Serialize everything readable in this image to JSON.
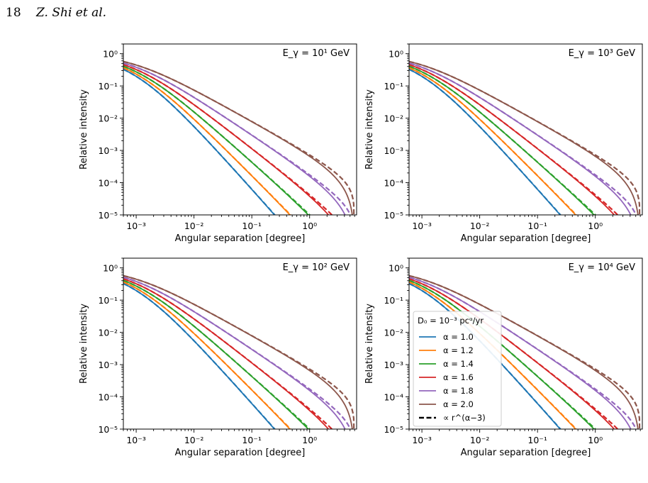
{
  "header": {
    "page_number": "18",
    "authors": "Z. Shi et al."
  },
  "colors": {
    "a10": "#1f77b4",
    "a12": "#ff7f0e",
    "a14": "#2ca02c",
    "a16": "#d62728",
    "a18": "#9467bd",
    "a20": "#8c564b"
  },
  "legend": {
    "title": "D₀ = 10⁻³ pcᵅ/yr",
    "dashed_label": "∝ r^(α−3)"
  },
  "chart_data": [
    {
      "type": "line",
      "panel": "top-left",
      "title": "E_γ = 10¹ GeV",
      "xlabel": "Angular separation [degree]",
      "ylabel": "Relative intensity",
      "xscale": "log",
      "yscale": "log",
      "xlim": [
        0.0006,
        6.5
      ],
      "ylim": [
        1e-05,
        2
      ],
      "x_ticks": [
        "10⁻³",
        "10⁻²",
        "10⁻¹",
        "10⁰"
      ],
      "y_ticks": [
        "10⁰",
        "10⁻¹",
        "10⁻²",
        "10⁻³",
        "10⁻⁴",
        "10⁻⁵"
      ],
      "cutoff": 6.0,
      "series": [
        {
          "name": "α = 1.0",
          "alpha": 1.0,
          "color": "#1f77b4"
        },
        {
          "name": "α = 1.2",
          "alpha": 1.2,
          "color": "#ff7f0e"
        },
        {
          "name": "α = 1.4",
          "alpha": 1.4,
          "color": "#2ca02c"
        },
        {
          "name": "α = 1.6",
          "alpha": 1.6,
          "color": "#d62728"
        },
        {
          "name": "α = 1.8",
          "alpha": 1.8,
          "color": "#9467bd"
        },
        {
          "name": "α = 2.0",
          "alpha": 2.0,
          "color": "#8c564b"
        }
      ]
    },
    {
      "type": "line",
      "panel": "top-right",
      "title": "E_γ = 10³ GeV",
      "xlabel": "Angular separation [degree]",
      "ylabel": "Relative intensity",
      "xscale": "log",
      "yscale": "log",
      "xlim": [
        0.0006,
        6.5
      ],
      "ylim": [
        1e-05,
        2
      ],
      "x_ticks": [
        "10⁻³",
        "10⁻²",
        "10⁻¹",
        "10⁰"
      ],
      "y_ticks": [
        "10⁰",
        "10⁻¹",
        "10⁻²",
        "10⁻³",
        "10⁻⁴",
        "10⁻⁵"
      ],
      "cutoff": 6.0,
      "series": [
        {
          "name": "α = 1.0",
          "alpha": 1.0,
          "color": "#1f77b4"
        },
        {
          "name": "α = 1.2",
          "alpha": 1.2,
          "color": "#ff7f0e"
        },
        {
          "name": "α = 1.4",
          "alpha": 1.4,
          "color": "#2ca02c"
        },
        {
          "name": "α = 1.6",
          "alpha": 1.6,
          "color": "#d62728"
        },
        {
          "name": "α = 1.8",
          "alpha": 1.8,
          "color": "#9467bd"
        },
        {
          "name": "α = 2.0",
          "alpha": 2.0,
          "color": "#8c564b"
        }
      ]
    },
    {
      "type": "line",
      "panel": "bottom-left",
      "title": "E_γ = 10² GeV",
      "xlabel": "Angular separation [degree]",
      "ylabel": "Relative intensity",
      "xscale": "log",
      "yscale": "log",
      "xlim": [
        0.0006,
        6.5
      ],
      "ylim": [
        1e-05,
        2
      ],
      "x_ticks": [
        "10⁻³",
        "10⁻²",
        "10⁻¹",
        "10⁰"
      ],
      "y_ticks": [
        "10⁰",
        "10⁻¹",
        "10⁻²",
        "10⁻³",
        "10⁻⁴",
        "10⁻⁵"
      ],
      "cutoff": 6.0,
      "series": [
        {
          "name": "α = 1.0",
          "alpha": 1.0,
          "color": "#1f77b4"
        },
        {
          "name": "α = 1.2",
          "alpha": 1.2,
          "color": "#ff7f0e"
        },
        {
          "name": "α = 1.4",
          "alpha": 1.4,
          "color": "#2ca02c"
        },
        {
          "name": "α = 1.6",
          "alpha": 1.6,
          "color": "#d62728"
        },
        {
          "name": "α = 1.8",
          "alpha": 1.8,
          "color": "#9467bd"
        },
        {
          "name": "α = 2.0",
          "alpha": 2.0,
          "color": "#8c564b"
        }
      ]
    },
    {
      "type": "line",
      "panel": "bottom-right",
      "title": "E_γ = 10⁴ GeV",
      "xlabel": "Angular separation [degree]",
      "ylabel": "Relative intensity",
      "xscale": "log",
      "yscale": "log",
      "xlim": [
        0.0006,
        6.5
      ],
      "ylim": [
        1e-05,
        2
      ],
      "x_ticks": [
        "10⁻³",
        "10⁻²",
        "10⁻¹",
        "10⁰"
      ],
      "y_ticks": [
        "10⁰",
        "10⁻¹",
        "10⁻²",
        "10⁻³",
        "10⁻⁴",
        "10⁻⁵"
      ],
      "cutoff": 6.0,
      "legend": "center-left",
      "series": [
        {
          "name": "α = 1.0",
          "alpha": 1.0,
          "color": "#1f77b4"
        },
        {
          "name": "α = 1.2",
          "alpha": 1.2,
          "color": "#ff7f0e"
        },
        {
          "name": "α = 1.4",
          "alpha": 1.4,
          "color": "#2ca02c"
        },
        {
          "name": "α = 1.6",
          "alpha": 1.6,
          "color": "#d62728"
        },
        {
          "name": "α = 1.8",
          "alpha": 1.8,
          "color": "#9467bd"
        },
        {
          "name": "α = 2.0",
          "alpha": 2.0,
          "color": "#8c564b"
        }
      ]
    }
  ]
}
